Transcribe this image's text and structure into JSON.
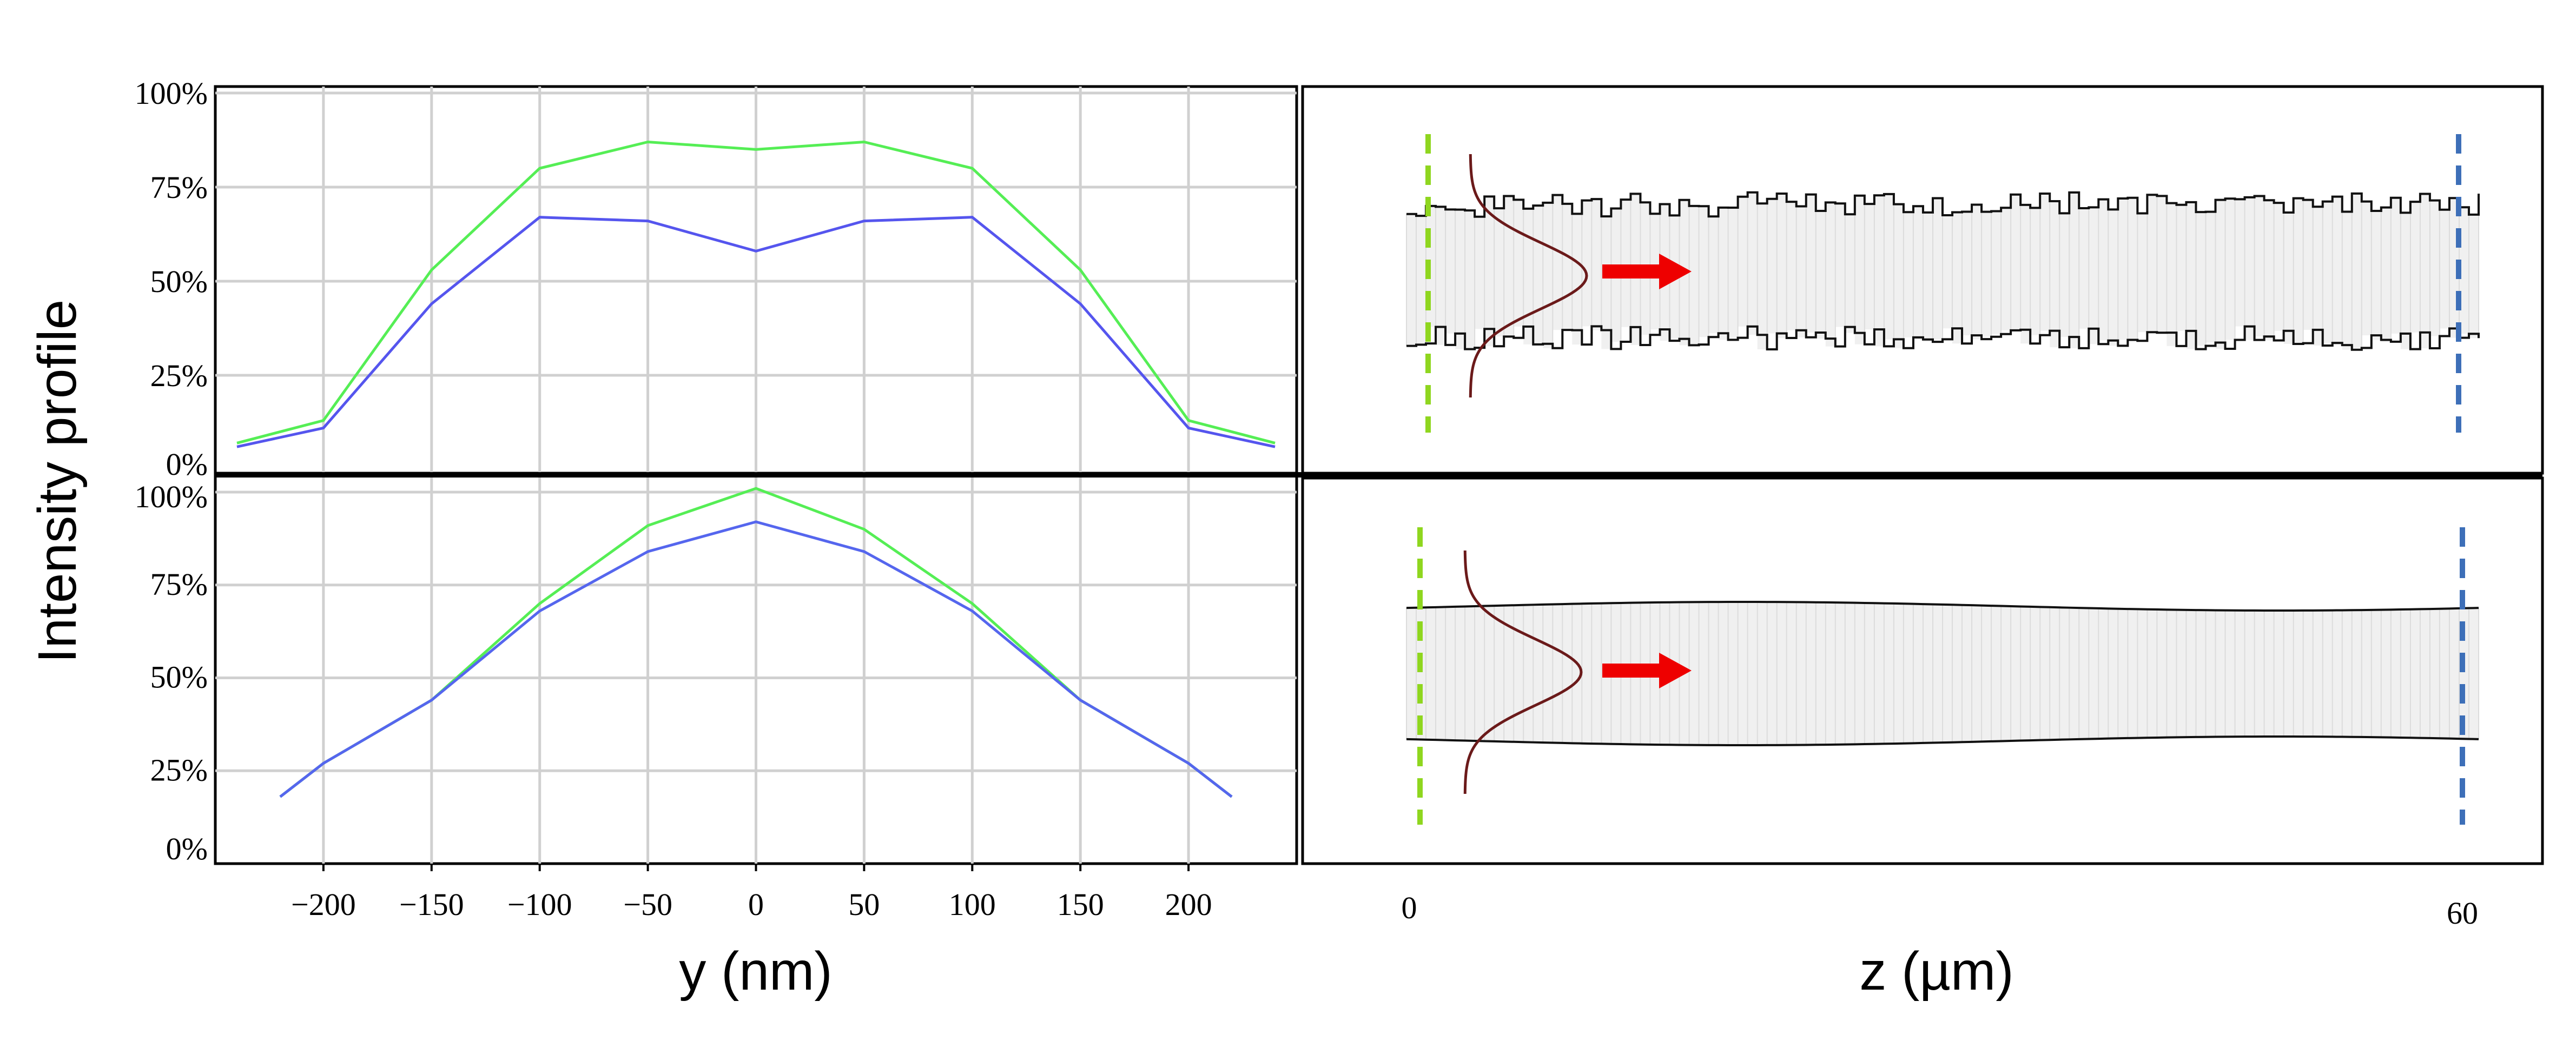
{
  "figure": {
    "ylabel": "Intensity profile",
    "left_xlabel": "y (nm)",
    "right_xlabel": "z (µm)"
  },
  "chart_data": [
    {
      "type": "line",
      "panel": "top-left",
      "x": [
        -240,
        -200,
        -150,
        -100,
        -50,
        0,
        50,
        100,
        150,
        200,
        240
      ],
      "ylim": [
        0,
        100
      ],
      "xlim": [
        -250,
        250
      ],
      "yticks": [
        "0%",
        "25%",
        "50%",
        "75%",
        "100%"
      ],
      "grid": true,
      "series": [
        {
          "color": "#55ee55",
          "values": [
            7,
            13,
            53,
            80,
            87,
            85,
            87,
            80,
            53,
            13,
            7
          ]
        },
        {
          "color": "#5555ee",
          "values": [
            6,
            11,
            44,
            67,
            66,
            58,
            66,
            67,
            44,
            11,
            6
          ]
        }
      ]
    },
    {
      "type": "line",
      "panel": "bottom-left",
      "x": [
        -220,
        -200,
        -150,
        -100,
        -50,
        0,
        50,
        100,
        150,
        200,
        220
      ],
      "ylim": [
        0,
        100
      ],
      "xlim": [
        -250,
        250
      ],
      "yticks": [
        "0%",
        "25%",
        "50%",
        "75%",
        "100%"
      ],
      "xticks": [
        "−200",
        "−150",
        "−100",
        "−50",
        "0",
        "50",
        "100",
        "150",
        "200"
      ],
      "grid": true,
      "series": [
        {
          "color": "#55ee55",
          "values": [
            18,
            27,
            44,
            70,
            91,
            101,
            90,
            70,
            44,
            27,
            18
          ]
        },
        {
          "color": "#5566ee",
          "values": [
            18,
            27,
            44,
            68,
            84,
            92,
            84,
            68,
            44,
            27,
            18
          ]
        }
      ]
    },
    {
      "type": "area",
      "panel": "top-right",
      "xticks": [
        "0",
        "60"
      ],
      "description_colors": {
        "fill": "#f0f0f0",
        "green_line": "#8fd61f",
        "blue_line": "#3d6fb8",
        "gaussian": "#6b1a1a",
        "arrow": "#ee0000"
      }
    },
    {
      "type": "area",
      "panel": "bottom-right",
      "description_colors": {
        "fill": "#f0f0f0",
        "green_line": "#8fd61f",
        "blue_line": "#3d6fb8",
        "gaussian": "#6b1a1a",
        "arrow": "#ee0000"
      }
    }
  ]
}
